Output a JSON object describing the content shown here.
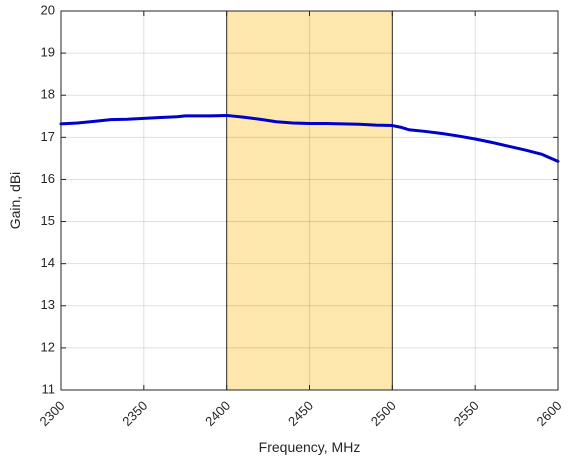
{
  "chart_data": {
    "type": "line",
    "title": "",
    "xlabel": "Frequency, MHz",
    "ylabel": "Gain, dBi",
    "xlim": [
      2300,
      2600
    ],
    "ylim": [
      11,
      20
    ],
    "xticks": [
      2300,
      2350,
      2400,
      2450,
      2500,
      2550,
      2600
    ],
    "yticks": [
      11,
      12,
      13,
      14,
      15,
      16,
      17,
      18,
      19,
      20
    ],
    "xtick_labels": [
      "2300",
      "2350",
      "2400",
      "2450",
      "2500",
      "2550",
      "2600"
    ],
    "ytick_labels": [
      "11",
      "12",
      "13",
      "14",
      "15",
      "16",
      "17",
      "18",
      "19",
      "20"
    ],
    "grid": true,
    "legend": "none",
    "highlight_band": {
      "x": [
        2400,
        2500
      ],
      "color": "#fde7ad"
    },
    "series": [
      {
        "color": "#0000cc",
        "x": [
          2300,
          2310,
          2320,
          2330,
          2340,
          2350,
          2360,
          2370,
          2375,
          2380,
          2390,
          2400,
          2410,
          2420,
          2430,
          2440,
          2450,
          2460,
          2470,
          2480,
          2490,
          2500,
          2505,
          2510,
          2520,
          2530,
          2540,
          2550,
          2560,
          2570,
          2580,
          2590,
          2600
        ],
        "values": [
          17.32,
          17.34,
          17.38,
          17.42,
          17.43,
          17.45,
          17.47,
          17.49,
          17.51,
          17.51,
          17.51,
          17.52,
          17.48,
          17.43,
          17.37,
          17.34,
          17.33,
          17.33,
          17.32,
          17.31,
          17.29,
          17.28,
          17.24,
          17.18,
          17.14,
          17.09,
          17.03,
          16.96,
          16.88,
          16.79,
          16.7,
          16.6,
          16.43
        ]
      }
    ]
  }
}
